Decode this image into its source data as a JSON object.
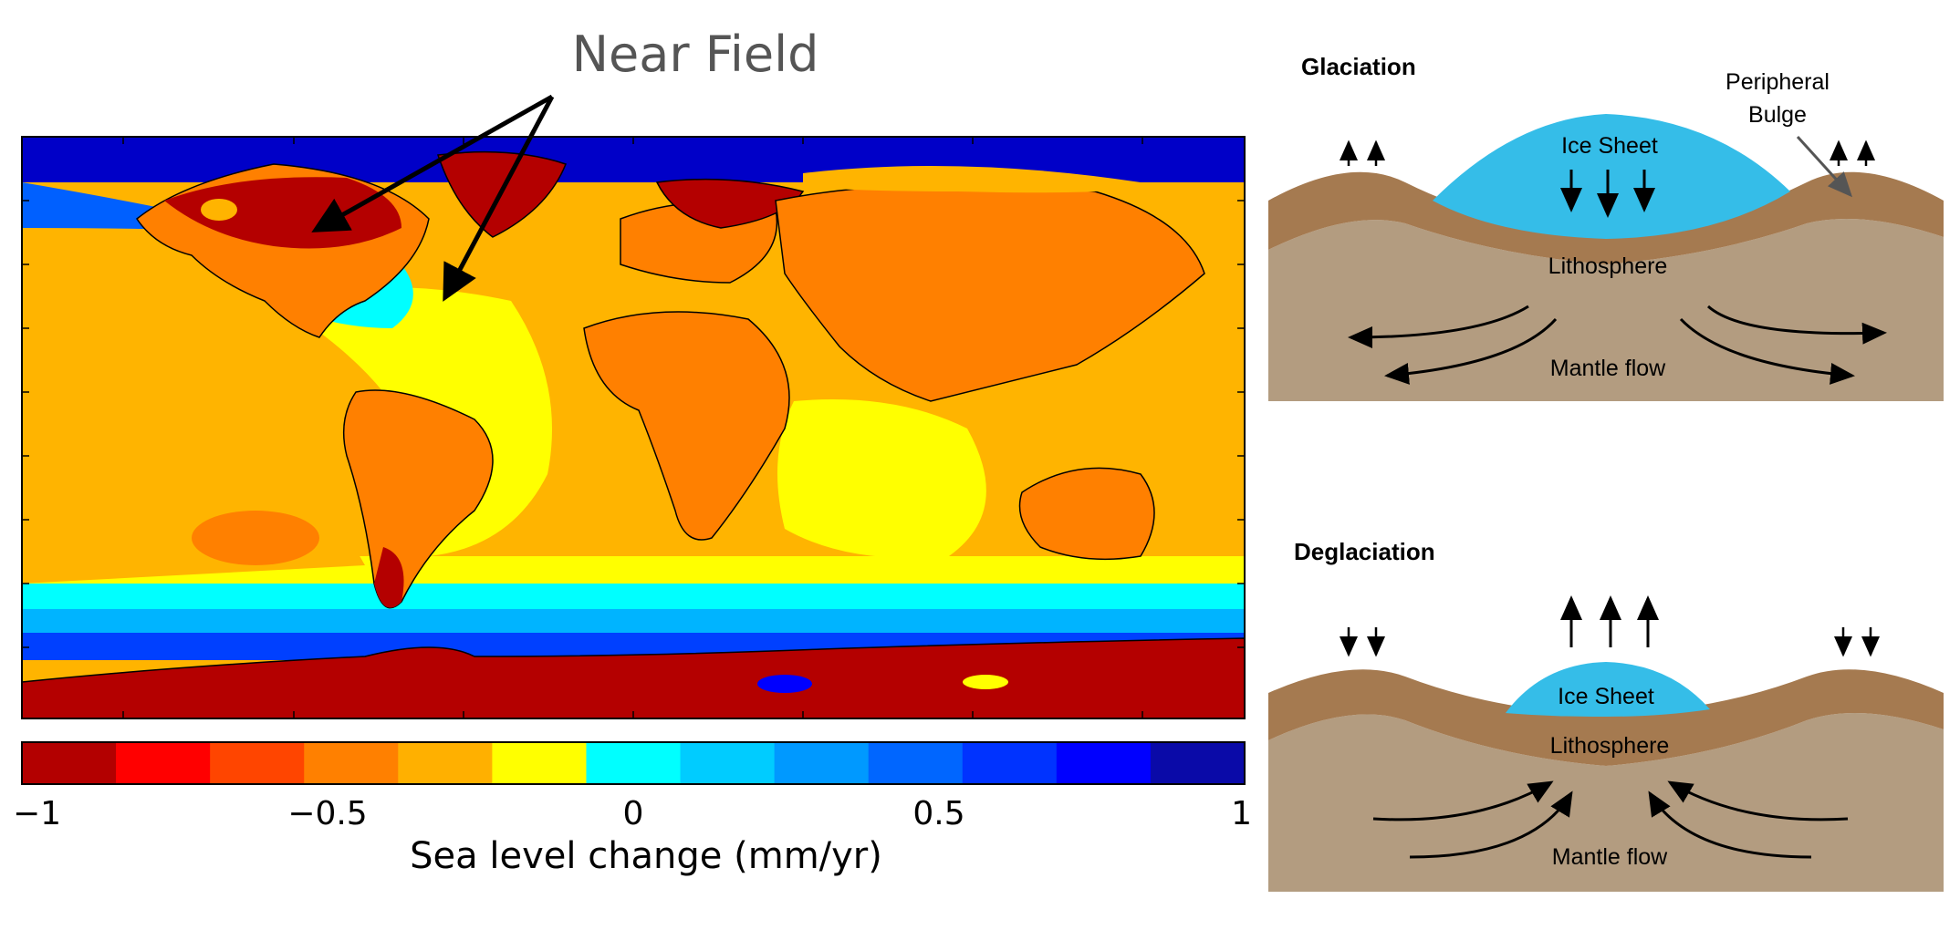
{
  "annotation": {
    "near_field": "Near Field"
  },
  "colorbar": {
    "colors": [
      "#b30000",
      "#ff0000",
      "#ff4500",
      "#ff8000",
      "#ffb000",
      "#ffff00",
      "#00ffff",
      "#00ccff",
      "#0099ff",
      "#0066ff",
      "#0033ff",
      "#0000ff",
      "#0a0aa8"
    ],
    "ticks": [
      "−1",
      "−0.5",
      "0",
      "0.5",
      "1"
    ],
    "label": "Sea level change (mm/yr)"
  },
  "glaciation": {
    "title": "Glaciation",
    "ice_sheet": "Ice Sheet",
    "lithosphere": "Lithosphere",
    "mantle_flow": "Mantle flow",
    "peripheral_bulge": [
      "Peripheral",
      "Bulge"
    ]
  },
  "deglaciation": {
    "title": "Deglaciation",
    "ice_sheet": "Ice Sheet",
    "lithosphere": "Lithosphere",
    "mantle_flow": "Mantle flow"
  },
  "colors": {
    "ocean_far": "#ffb400",
    "ocean_mid": "#ffff00",
    "ocean_cyan": "#00ffff",
    "ocean_blue": "#00b4ff",
    "ocean_deep": "#0000c8",
    "land_orange": "#ff8000",
    "land_red": "#b40000",
    "ice": "#35bde8",
    "lithosphere": "#a57a50",
    "mantle": "#b39c80"
  }
}
